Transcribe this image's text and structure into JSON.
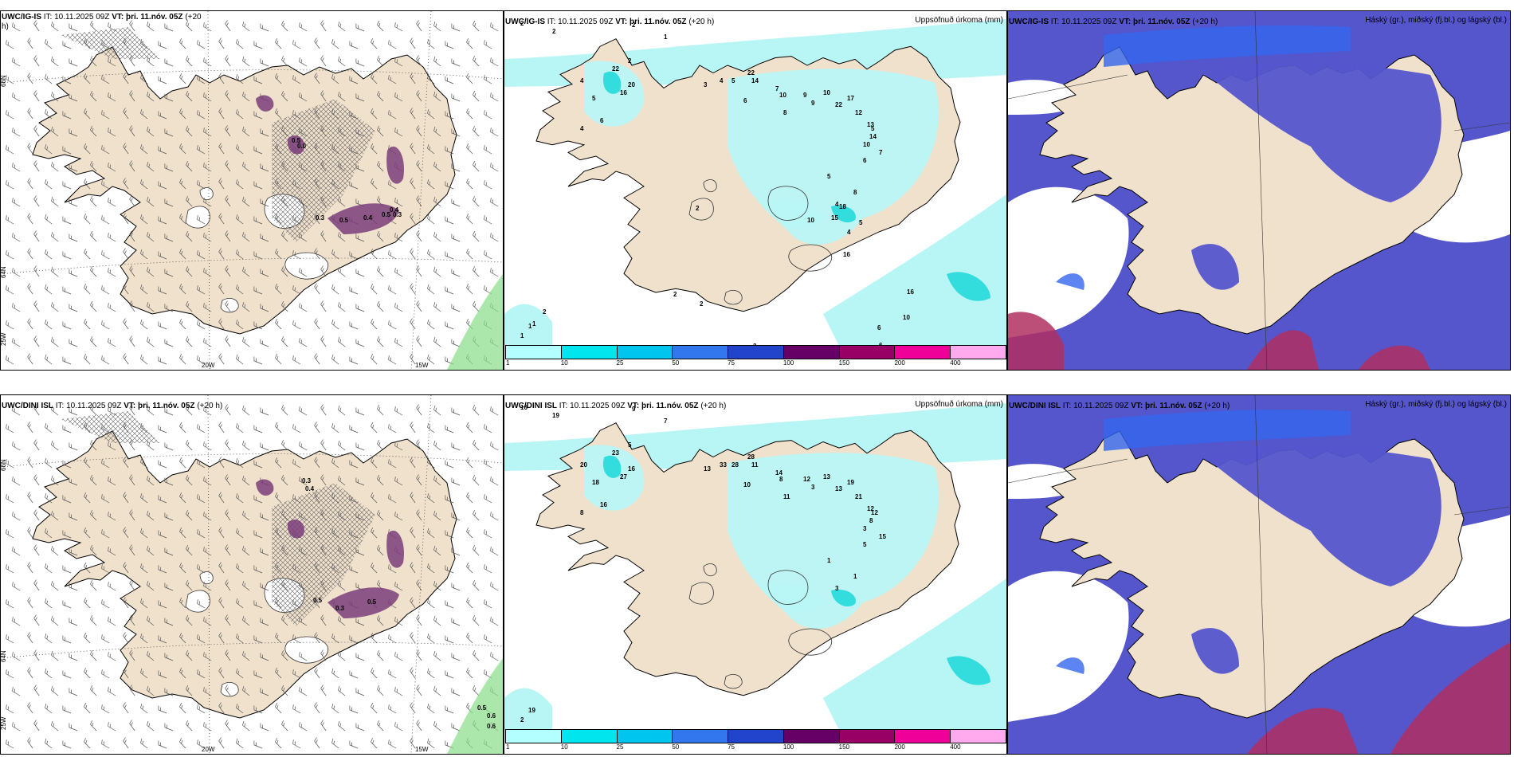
{
  "panels": [
    {
      "id": "p1",
      "model": "UWC/IG-IS",
      "it": "10.11.2025 09Z",
      "vt": "þri. 11.nóv. 05Z",
      "lead": "(+20",
      "lead2": "h)",
      "kind": "wind"
    },
    {
      "id": "p2",
      "model": "UWC/IG-IS",
      "it": "10.11.2025 09Z",
      "vt": "þri. 11.nóv. 05Z",
      "lead": "(+20 h)",
      "variable": "Uppsöfnuð úrkoma (mm)",
      "kind": "precip"
    },
    {
      "id": "p3",
      "model": "UWC/IG-IS",
      "it": "10.11.2025 09Z",
      "vt": "þri. 11.nóv. 05Z",
      "lead": "(+20 h)",
      "variable": "Háský (gr.), miðský (fj.bl.) og lágský (bl.)",
      "kind": "cloud"
    },
    {
      "id": "p4",
      "model": "UWC/DINI ISL",
      "it": "10.11.2025 09Z",
      "vt": "þri. 11.nóv. 05Z",
      "lead": "(+20 h)",
      "kind": "wind"
    },
    {
      "id": "p5",
      "model": "UWC/DINI ISL",
      "it": "10.11.2025 09Z",
      "vt": "þri. 11.nóv. 05Z",
      "lead": "(+20 h)",
      "variable": "Uppsöfnuð úrkoma (mm)",
      "kind": "precip"
    },
    {
      "id": "p6",
      "model": "UWC/DINI ISL",
      "it": "10.11.2025 09Z",
      "vt": "þri. 11.nóv. 05Z",
      "lead": "(+20 h)",
      "variable": "Háský (gr.), miðský (fj.bl.) og lágský (bl.)",
      "kind": "cloud"
    }
  ],
  "labels": {
    "it": "IT:",
    "vt": "VT:"
  },
  "axes": {
    "lat66": "66N",
    "lat64": "64N",
    "lon25": "25W",
    "lon20": "20W",
    "lon15": "15W"
  },
  "legend": {
    "ticks": [
      "1",
      "10",
      "25",
      "50",
      "75",
      "100",
      "150",
      "200",
      "400"
    ],
    "colors": [
      "#b3ffff",
      "#00e5ee",
      "#00c5ee",
      "#3377ee",
      "#2244cc",
      "#660066",
      "#990066",
      "#ee0099",
      "#ffaaee"
    ]
  },
  "colors": {
    "land": "#f0e1cc",
    "precipLight": "#b8f5f5",
    "precipMid": "#33dddd",
    "cloudLow": "#5555cc",
    "cloudMid": "#3366ee",
    "cloudHigh": "#b03060",
    "green": "#88dd88"
  },
  "precip_top": {
    "labels": [
      [
        "1",
        ""
      ],
      [
        "1",
        ""
      ],
      [
        "2",
        ""
      ],
      [
        "2",
        ""
      ],
      [
        "2",
        ""
      ],
      [
        "1",
        ""
      ],
      [
        "2",
        ""
      ],
      [
        "4",
        ""
      ],
      [
        "22",
        ""
      ],
      [
        "16",
        ""
      ],
      [
        "20",
        ""
      ],
      [
        "4",
        ""
      ],
      [
        "5",
        ""
      ],
      [
        "6",
        ""
      ],
      [
        "3",
        ""
      ],
      [
        "4",
        ""
      ],
      [
        "5",
        ""
      ],
      [
        "22",
        ""
      ],
      [
        "14",
        ""
      ],
      [
        "6",
        ""
      ],
      [
        "7",
        ""
      ],
      [
        "8",
        ""
      ],
      [
        "10",
        ""
      ],
      [
        "9",
        ""
      ],
      [
        "9",
        ""
      ],
      [
        "10",
        ""
      ],
      [
        "22",
        ""
      ],
      [
        "17",
        ""
      ],
      [
        "12",
        ""
      ],
      [
        "13",
        ""
      ],
      [
        "14",
        ""
      ],
      [
        "10",
        ""
      ],
      [
        "5",
        ""
      ],
      [
        "7",
        ""
      ],
      [
        "6",
        ""
      ],
      [
        "5",
        ""
      ],
      [
        "4",
        ""
      ],
      [
        "8",
        ""
      ],
      [
        "2",
        ""
      ],
      [
        "15",
        ""
      ],
      [
        "18",
        ""
      ],
      [
        "10",
        ""
      ],
      [
        "4",
        ""
      ],
      [
        "5",
        ""
      ],
      [
        "16",
        ""
      ],
      [
        "2",
        ""
      ],
      [
        "2",
        ""
      ],
      [
        "3",
        ""
      ],
      [
        "6",
        ""
      ],
      [
        "10",
        ""
      ],
      [
        "16",
        ""
      ],
      [
        "6",
        ""
      ],
      [
        "1",
        ""
      ],
      [
        "2",
        ""
      ]
    ]
  },
  "precip_bottom": {
    "labels": [
      [
        "2",
        ""
      ],
      [
        "19",
        ""
      ],
      [
        "16",
        ""
      ],
      [
        "19",
        ""
      ],
      [
        "9",
        ""
      ],
      [
        "7",
        ""
      ],
      [
        "5",
        ""
      ],
      [
        "20",
        ""
      ],
      [
        "23",
        ""
      ],
      [
        "27",
        ""
      ],
      [
        "16",
        ""
      ],
      [
        "8",
        ""
      ],
      [
        "18",
        ""
      ],
      [
        "16",
        ""
      ],
      [
        "13",
        ""
      ],
      [
        "33",
        ""
      ],
      [
        "28",
        ""
      ],
      [
        "28",
        ""
      ],
      [
        "11",
        ""
      ],
      [
        "10",
        ""
      ],
      [
        "14",
        ""
      ],
      [
        "11",
        ""
      ],
      [
        "8",
        ""
      ],
      [
        "12",
        ""
      ],
      [
        "3",
        ""
      ],
      [
        "13",
        ""
      ],
      [
        "13",
        ""
      ],
      [
        "19",
        ""
      ],
      [
        "21",
        ""
      ],
      [
        "12",
        ""
      ],
      [
        "8",
        ""
      ],
      [
        "3",
        ""
      ],
      [
        "12",
        ""
      ],
      [
        "15",
        ""
      ],
      [
        "5",
        ""
      ],
      [
        "1",
        ""
      ],
      [
        "3",
        ""
      ],
      [
        "1",
        ""
      ]
    ]
  },
  "wind_top_values": [
    "0.5",
    "0.0",
    "0.3",
    "0.5",
    "0.4",
    "0.5",
    "0.3",
    "0.4"
  ],
  "wind_bottom_values": [
    "0.3",
    "0.4",
    "0.5",
    "0.3",
    "0.5",
    "0.5",
    "0.6",
    "0.6"
  ]
}
